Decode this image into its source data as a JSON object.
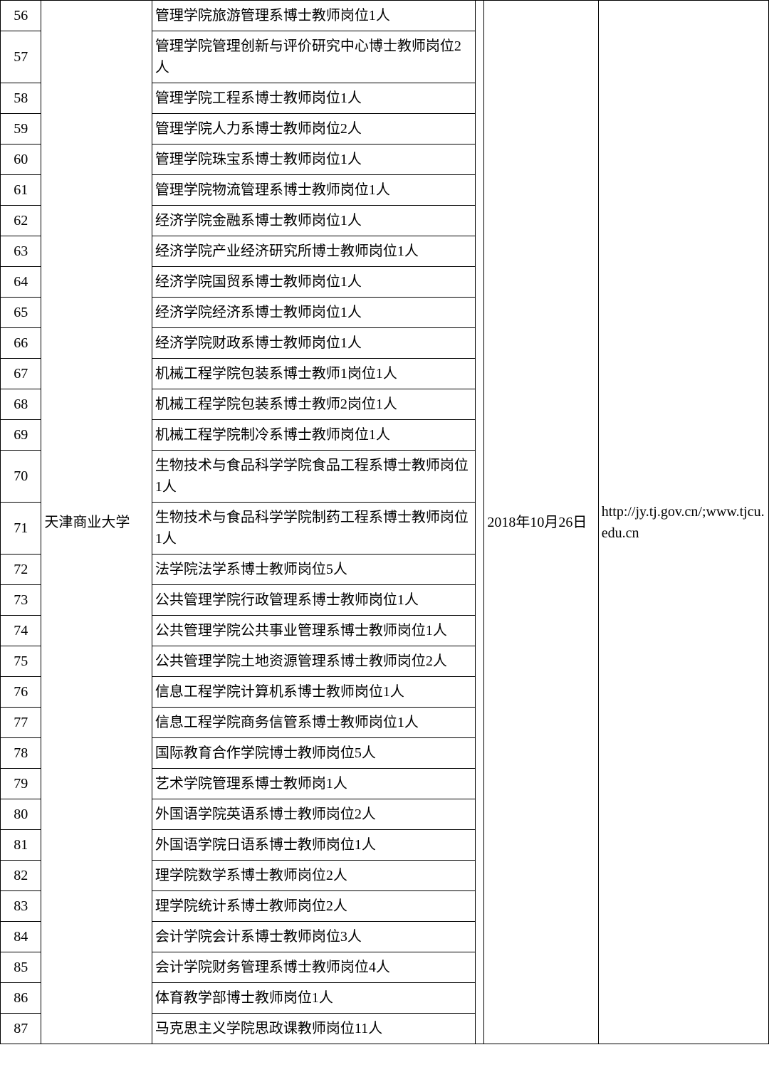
{
  "table": {
    "university": "天津商业大学",
    "date": "2018年10月26日",
    "url": "http://jy.tj.gov.cn/;www.tjcu.edu.cn",
    "rows": [
      {
        "num": "56",
        "pos": "管理学院旅游管理系博士教师岗位1人"
      },
      {
        "num": "57",
        "pos": "管理学院管理创新与评价研究中心博士教师岗位2人"
      },
      {
        "num": "58",
        "pos": "管理学院工程系博士教师岗位1人"
      },
      {
        "num": "59",
        "pos": "管理学院人力系博士教师岗位2人"
      },
      {
        "num": "60",
        "pos": "管理学院珠宝系博士教师岗位1人"
      },
      {
        "num": "61",
        "pos": "管理学院物流管理系博士教师岗位1人"
      },
      {
        "num": "62",
        "pos": "经济学院金融系博士教师岗位1人"
      },
      {
        "num": "63",
        "pos": "经济学院产业经济研究所博士教师岗位1人"
      },
      {
        "num": "64",
        "pos": "经济学院国贸系博士教师岗位1人"
      },
      {
        "num": "65",
        "pos": "经济学院经济系博士教师岗位1人"
      },
      {
        "num": "66",
        "pos": "经济学院财政系博士教师岗位1人"
      },
      {
        "num": "67",
        "pos": "机械工程学院包装系博士教师1岗位1人"
      },
      {
        "num": "68",
        "pos": "机械工程学院包装系博士教师2岗位1人"
      },
      {
        "num": "69",
        "pos": "机械工程学院制冷系博士教师岗位1人"
      },
      {
        "num": "70",
        "pos": "生物技术与食品科学学院食品工程系博士教师岗位1人"
      },
      {
        "num": "71",
        "pos": "生物技术与食品科学学院制药工程系博士教师岗位1人"
      },
      {
        "num": "72",
        "pos": "法学院法学系博士教师岗位5人"
      },
      {
        "num": "73",
        "pos": "公共管理学院行政管理系博士教师岗位1人"
      },
      {
        "num": "74",
        "pos": "公共管理学院公共事业管理系博士教师岗位1人"
      },
      {
        "num": "75",
        "pos": "公共管理学院土地资源管理系博士教师岗位2人"
      },
      {
        "num": "76",
        "pos": "信息工程学院计算机系博士教师岗位1人"
      },
      {
        "num": "77",
        "pos": "信息工程学院商务信管系博士教师岗位1人"
      },
      {
        "num": "78",
        "pos": "国际教育合作学院博士教师岗位5人"
      },
      {
        "num": "79",
        "pos": "艺术学院管理系博士教师岗1人"
      },
      {
        "num": "80",
        "pos": "外国语学院英语系博士教师岗位2人"
      },
      {
        "num": "81",
        "pos": "外国语学院日语系博士教师岗位1人"
      },
      {
        "num": "82",
        "pos": "理学院数学系博士教师岗位2人"
      },
      {
        "num": "83",
        "pos": "理学院统计系博士教师岗位2人"
      },
      {
        "num": "84",
        "pos": "会计学院会计系博士教师岗位3人"
      },
      {
        "num": "85",
        "pos": "会计学院财务管理系博士教师岗位4人"
      },
      {
        "num": "86",
        "pos": "体育教学部博士教师岗位1人"
      },
      {
        "num": "87",
        "pos": "马克思主义学院思政课教师岗位11人"
      }
    ]
  }
}
